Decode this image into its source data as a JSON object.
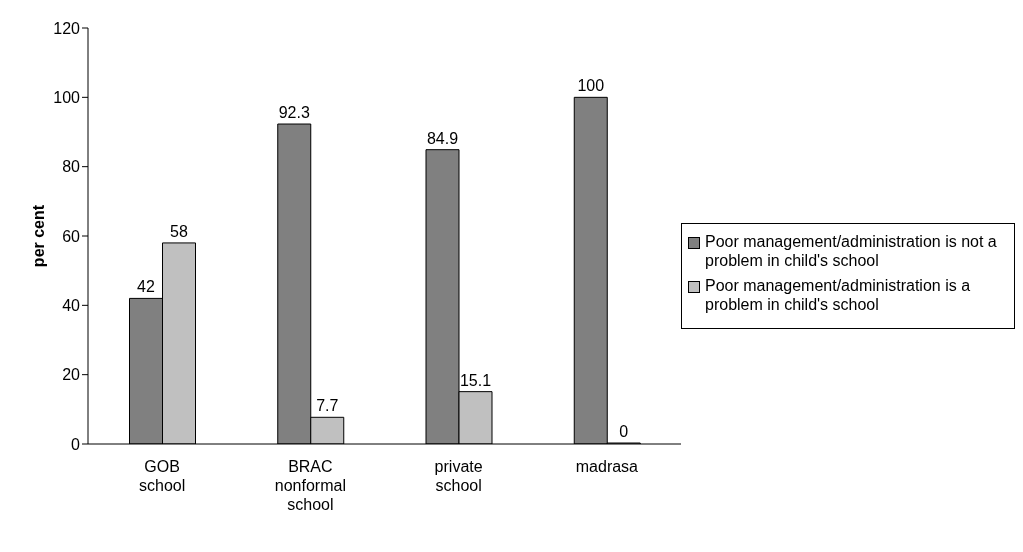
{
  "chart_data": {
    "type": "bar",
    "ylabel": "per cent",
    "categories": [
      "GOB school",
      "BRAC nonformal school",
      "private school",
      "madrasa"
    ],
    "series": [
      {
        "name": "Poor management/administration is not a problem in child's school",
        "color": "#808080",
        "values": [
          42,
          92.3,
          84.9,
          100
        ]
      },
      {
        "name": "Poor management/administration is a problem in child's school",
        "color": "#c0c0c0",
        "values": [
          58,
          7.7,
          15.1,
          0
        ]
      }
    ],
    "ylim": [
      0,
      120
    ],
    "yticks": [
      0,
      20,
      40,
      60,
      80,
      100,
      120
    ],
    "data_labels": true,
    "legend": "right",
    "grid": false
  }
}
